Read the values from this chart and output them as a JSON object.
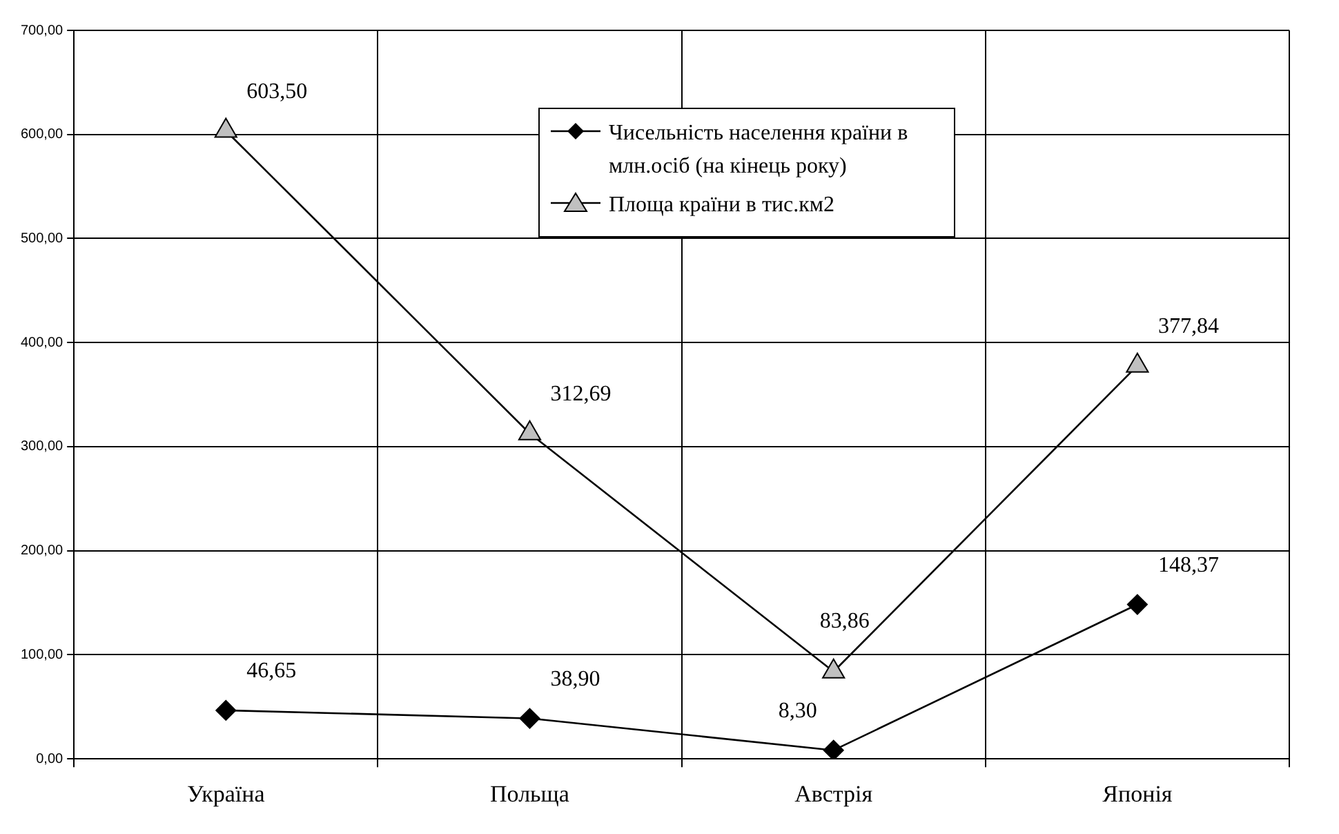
{
  "chart_data": {
    "type": "line",
    "categories": [
      "Україна",
      "Польща",
      "Австрія",
      "Японія"
    ],
    "series": [
      {
        "name": "Чисельність населення країни в млн.осіб (на кінець року)",
        "color": "#000000",
        "marker": "diamond",
        "values": [
          46.65,
          38.9,
          8.3,
          148.37
        ],
        "value_labels": [
          "46,65",
          "38,90",
          "8,30",
          "148,37"
        ]
      },
      {
        "name": "Площа країни в тис.км2",
        "color": "#000000",
        "marker": "triangle",
        "values": [
          603.5,
          312.69,
          83.86,
          377.84
        ],
        "value_labels": [
          "603,50",
          "312,69",
          "83,86",
          "377,84"
        ]
      }
    ],
    "ylim": [
      0,
      700
    ],
    "yticks": [
      {
        "value": 0,
        "label": "0,00"
      },
      {
        "value": 100,
        "label": "100,00"
      },
      {
        "value": 200,
        "label": "200,00"
      },
      {
        "value": 300,
        "label": "300,00"
      },
      {
        "value": 400,
        "label": "400,00"
      },
      {
        "value": 500,
        "label": "500,00"
      },
      {
        "value": 600,
        "label": "600,00"
      },
      {
        "value": 700,
        "label": "700,00"
      }
    ],
    "grid": true,
    "legend": "top"
  }
}
